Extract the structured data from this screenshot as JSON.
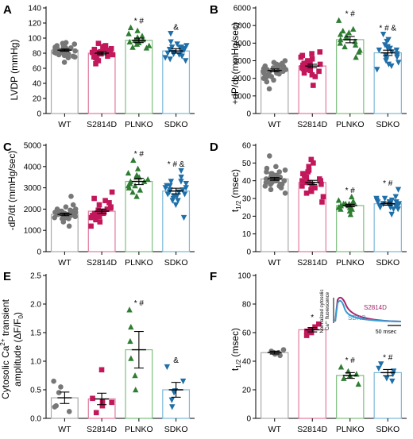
{
  "chart_data": [
    {
      "panel": "A",
      "type": "bar",
      "categories": [
        "WT",
        "S2814D",
        "PLNKO",
        "SDKO"
      ],
      "ylabel": "LVDP (mmHg)",
      "ylim": [
        0,
        140
      ],
      "yticks": [
        0,
        20,
        40,
        60,
        80,
        100,
        120,
        140
      ],
      "values": [
        84,
        80,
        97,
        83
      ],
      "sem": [
        1.5,
        2,
        3,
        3
      ],
      "significance": [
        "",
        "",
        "* #",
        "&"
      ],
      "marker": [
        "circle",
        "square",
        "triangle-up",
        "triangle-down"
      ],
      "colors": [
        "#777777",
        "#c2185b",
        "#2e7d32",
        "#1f6fa8"
      ],
      "edge": [
        "#aaaaaa",
        "#e07aa0",
        "#7fbf7f",
        "#7ab8d9"
      ],
      "points": [
        [
          68,
          94,
          86,
          78,
          91,
          84,
          88,
          76,
          82,
          93,
          80,
          87,
          74,
          85,
          89,
          82,
          79,
          90,
          84,
          77,
          86,
          81,
          92,
          83,
          80,
          88,
          75,
          85,
          82,
          87
        ],
        [
          90,
          72,
          85,
          78,
          82,
          66,
          88,
          80,
          75,
          84,
          93,
          70,
          81,
          86,
          77,
          83,
          79,
          74,
          89,
          81,
          76,
          85
        ],
        [
          114,
          88,
          100,
          95,
          106,
          92,
          98,
          103,
          90,
          97,
          110,
          94,
          101,
          87,
          99,
          96
        ],
        [
          106,
          72,
          88,
          80,
          95,
          76,
          84,
          90,
          70,
          86,
          82,
          78,
          92,
          74,
          88,
          81,
          85,
          79,
          87,
          83
        ]
      ]
    },
    {
      "panel": "B",
      "type": "bar",
      "categories": [
        "WT",
        "S2814D",
        "PLNKO",
        "SDKO"
      ],
      "ylabel": "+dP/dt (mmHg/sec)",
      "ylim": [
        0,
        6000
      ],
      "yticks": [
        0,
        1000,
        2000,
        3000,
        4000,
        5000,
        6000
      ],
      "values": [
        2450,
        2700,
        4200,
        3450
      ],
      "sem": [
        80,
        100,
        180,
        150
      ],
      "significance": [
        "",
        "",
        "* #",
        "* # &"
      ],
      "marker": [
        "circle",
        "square",
        "triangle-up",
        "triangle-down"
      ],
      "colors": [
        "#777777",
        "#c2185b",
        "#2e7d32",
        "#1f6fa8"
      ],
      "edge": [
        "#aaaaaa",
        "#e07aa0",
        "#7fbf7f",
        "#7ab8d9"
      ],
      "points": [
        [
          1400,
          3000,
          2400,
          2100,
          2800,
          2600,
          2200,
          2500,
          1900,
          2700,
          2300,
          2900,
          2050,
          2450,
          2650,
          2350,
          2550,
          1800,
          2750,
          2250,
          2600,
          2400,
          2150,
          2850,
          2500,
          2300,
          2700,
          2000
        ],
        [
          1600,
          3500,
          2800,
          2300,
          3100,
          2600,
          2900,
          2200,
          3300,
          2700,
          2500,
          3000,
          2400,
          2850,
          2650,
          3200,
          2100,
          2750,
          2950,
          2550,
          3400,
          2450
        ],
        [
          5300,
          3200,
          4600,
          3900,
          4400,
          3600,
          4100,
          4800,
          3800,
          4300,
          4500,
          3500,
          4200,
          4000,
          4700
        ],
        [
          4500,
          2500,
          3700,
          3100,
          3900,
          2800,
          3300,
          4200,
          3000,
          3600,
          3400,
          2700,
          3800,
          3200,
          3500,
          4100,
          2900,
          3600,
          3300,
          3700
        ]
      ]
    },
    {
      "panel": "C",
      "type": "bar",
      "categories": [
        "WT",
        "S2814D",
        "PLNKO",
        "SDKO"
      ],
      "ylabel": "-dP/dt (mmHg/sec)",
      "ylim": [
        0,
        5000
      ],
      "yticks": [
        0,
        1000,
        2000,
        3000,
        4000,
        5000
      ],
      "values": [
        1750,
        1900,
        3300,
        2850
      ],
      "sem": [
        60,
        100,
        150,
        130
      ],
      "significance": [
        "",
        "",
        "* #",
        "* # &"
      ],
      "marker": [
        "circle",
        "square",
        "triangle-up",
        "triangle-down"
      ],
      "colors": [
        "#777777",
        "#c2185b",
        "#2e7d32",
        "#1f6fa8"
      ],
      "edge": [
        "#aaaaaa",
        "#e07aa0",
        "#7fbf7f",
        "#7ab8d9"
      ],
      "points": [
        [
          1200,
          2600,
          1800,
          1600,
          2000,
          1700,
          1900,
          1500,
          1850,
          1650,
          2100,
          1750,
          1550,
          1950,
          1700,
          1800,
          1400,
          2200,
          1750,
          1600,
          1900,
          1650,
          1850,
          1700,
          1800,
          1550,
          2000,
          1750,
          1650,
          1900
        ],
        [
          1200,
          2800,
          1900,
          1600,
          2200,
          1800,
          2400,
          1500,
          2000,
          1700,
          2100,
          1850,
          1650,
          2300,
          1750,
          1950,
          1400,
          2050,
          1800,
          1700,
          2500,
          1900
        ],
        [
          4300,
          2600,
          3500,
          3100,
          3700,
          3000,
          3300,
          3900,
          2900,
          3400,
          3200,
          3600,
          2800,
          3500,
          3100,
          3300
        ],
        [
          3800,
          1600,
          3000,
          2600,
          3300,
          2400,
          2900,
          3500,
          2200,
          3100,
          2800,
          2700,
          3200,
          2500,
          3000,
          2900,
          2600,
          3100,
          2800,
          2700,
          3300,
          2400
        ]
      ]
    },
    {
      "panel": "D",
      "type": "bar",
      "categories": [
        "WT",
        "S2814D",
        "PLNKO",
        "SDKO"
      ],
      "ylabel": "t",
      "ylabel_sub": "1/2",
      "ylabel_unit": "(msec)",
      "ylim": [
        0,
        60
      ],
      "yticks": [
        0,
        10,
        20,
        30,
        40,
        50,
        60
      ],
      "values": [
        41,
        39,
        26,
        27
      ],
      "sem": [
        0.8,
        1.2,
        0.7,
        0.8
      ],
      "significance": [
        "",
        "",
        "* #",
        "* #"
      ],
      "marker": [
        "circle",
        "square",
        "triangle-up",
        "triangle-down"
      ],
      "colors": [
        "#777777",
        "#c2185b",
        "#2e7d32",
        "#1f6fa8"
      ],
      "edge": [
        "#aaaaaa",
        "#e07aa0",
        "#7fbf7f",
        "#7ab8d9"
      ],
      "points": [
        [
          33,
          54,
          44,
          38,
          47,
          40,
          42,
          36,
          45,
          39,
          43,
          41,
          37,
          46,
          40,
          42,
          35,
          48,
          41,
          39,
          44,
          38,
          42,
          40,
          43,
          41,
          39,
          37,
          45,
          42,
          40,
          38
        ],
        [
          28,
          52,
          40,
          35,
          44,
          38,
          48,
          33,
          42,
          37,
          46,
          39,
          31,
          41,
          36,
          50,
          40,
          34,
          43,
          38,
          45,
          39
        ],
        [
          21,
          31,
          27,
          24,
          28,
          25,
          26,
          29,
          23,
          27,
          25,
          28,
          26,
          24,
          27,
          26
        ],
        [
          21,
          35,
          28,
          25,
          30,
          26,
          27,
          31,
          24,
          28,
          26,
          29,
          27,
          25,
          28,
          26,
          30,
          27,
          24,
          28,
          26,
          29
        ]
      ]
    },
    {
      "panel": "E",
      "type": "bar",
      "categories": [
        "WT",
        "S2814D",
        "PLNKO",
        "SDKO"
      ],
      "ylabel": "Cytosolic Ca",
      "ylabel_sup": "2+",
      "ylabel_tail": " transient",
      "ylabel2": "amplitude (ΔF/F",
      "ylabel2_sub": "0",
      "ylabel2_tail": ")",
      "ylim": [
        0,
        2.5
      ],
      "yticks": [
        0.0,
        0.5,
        1.0,
        1.5,
        2.0,
        2.5
      ],
      "tick_labels": [
        "0.0",
        "0.5",
        "1.0",
        "1.5",
        "2.0",
        "2.5"
      ],
      "values": [
        0.36,
        0.34,
        1.2,
        0.5
      ],
      "sem": [
        0.1,
        0.1,
        0.32,
        0.13
      ],
      "significance": [
        "",
        "",
        "* #",
        "&"
      ],
      "marker": [
        "circle",
        "square",
        "triangle-up",
        "triangle-down"
      ],
      "colors": [
        "#777777",
        "#c2185b",
        "#2e7d32",
        "#1f6fa8"
      ],
      "edge": [
        "#aaaaaa",
        "#e07aa0",
        "#7fbf7f",
        "#7ab8d9"
      ],
      "points": [
        [
          0.12,
          0.65,
          0.45,
          0.22,
          0.55,
          0.2
        ],
        [
          0.1,
          0.85,
          0.3,
          0.22,
          0.28,
          0.35
        ],
        [
          0.5,
          1.9,
          1.6,
          1.05,
          0.75,
          1.35
        ],
        [
          0.2,
          0.9,
          0.45,
          0.32,
          0.65,
          0.48
        ]
      ]
    },
    {
      "panel": "F",
      "type": "bar",
      "categories": [
        "WT",
        "S2814D",
        "PLNKO",
        "SDKO"
      ],
      "ylabel": "t",
      "ylabel_sub": "1/2",
      "ylabel_unit": "(msec)",
      "ylim": [
        0,
        100
      ],
      "yticks": [
        0,
        20,
        40,
        60,
        80,
        100
      ],
      "values": [
        46,
        62,
        30,
        32
      ],
      "sem": [
        1,
        1.5,
        2,
        2.2
      ],
      "significance": [
        "",
        "*",
        "* #",
        "* #"
      ],
      "marker": [
        "circle",
        "square",
        "triangle-up",
        "triangle-down"
      ],
      "colors": [
        "#777777",
        "#c2185b",
        "#2e7d32",
        "#1f6fa8"
      ],
      "edge": [
        "#aaaaaa",
        "#e07aa0",
        "#7fbf7f",
        "#7ab8d9"
      ],
      "points": [
        [
          45,
          48,
          46,
          47,
          44,
          46
        ],
        [
          58,
          66,
          61,
          64,
          62,
          60
        ],
        [
          24,
          36,
          30,
          33,
          28,
          31
        ],
        [
          26,
          38,
          31,
          35,
          28,
          33
        ]
      ],
      "inset": {
        "ylabel1": "Normalized cytosolic",
        "ylabel2_pre": "Ca",
        "ylabel2_sup": "2+",
        "ylabel2_tail": " fluorescence",
        "trace1_label": "S2814D",
        "trace1_color": "#a3266b",
        "trace2_label": "SDKO",
        "trace2_color": "#3a9bd0",
        "scalebar_label": "50 msec"
      }
    }
  ]
}
